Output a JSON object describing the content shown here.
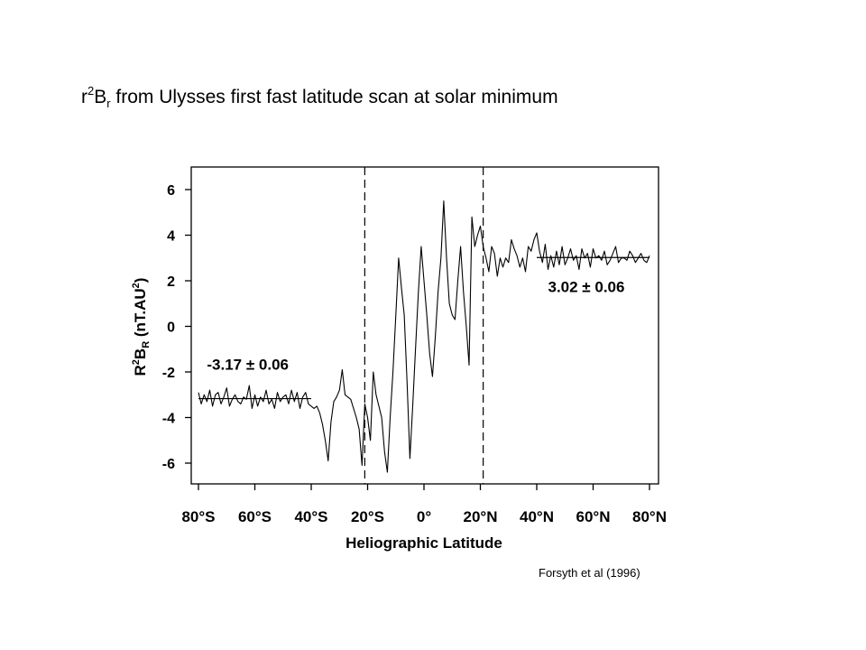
{
  "slide": {
    "title_main": "r",
    "title_sup": "2",
    "title_b": "B",
    "title_sub": "r",
    "title_rest": " from Ulysses first fast latitude scan at solar minimum",
    "citation": "Forsyth et al (1996)"
  },
  "chart_data": {
    "type": "line",
    "xlabel": "Heliographic Latitude",
    "ylabel_parts": [
      "R",
      "2",
      "B",
      "R",
      " (nT.AU",
      "2",
      ")"
    ],
    "xlim": [
      -82,
      82
    ],
    "ylim": [
      -7,
      7
    ],
    "x_ticks": [
      -80,
      -60,
      -40,
      -20,
      0,
      20,
      40,
      60,
      80
    ],
    "x_tick_labels": [
      "80°S",
      "60°S",
      "40°S",
      "20°S",
      "0°",
      "20°N",
      "40°N",
      "60°N",
      "80°N"
    ],
    "y_ticks": [
      6,
      4,
      2,
      0,
      -2,
      -4,
      -6
    ],
    "y_tick_labels": [
      "6",
      "4",
      "2",
      "0",
      "-2",
      "-4",
      "-6"
    ],
    "grid": false,
    "dashed_vlines": [
      -21,
      21
    ],
    "fits": [
      {
        "x": [
          -80,
          -40
        ],
        "y": -3.17,
        "label": "-3.17 ± 0.06",
        "label_x": -77,
        "label_y": -1.9
      },
      {
        "x": [
          40,
          80
        ],
        "y": 3.02,
        "label": "3.02 ± 0.06",
        "label_x": 44,
        "label_y": 1.5
      }
    ],
    "series": [
      {
        "x": [
          -80,
          -79,
          -78,
          -77,
          -76,
          -75,
          -74,
          -73,
          -72,
          -71,
          -70,
          -69,
          -68,
          -67,
          -66,
          -65,
          -64,
          -63,
          -62,
          -61,
          -60,
          -59,
          -58,
          -57,
          -56,
          -55,
          -54,
          -53,
          -52,
          -51,
          -50,
          -49,
          -48,
          -47,
          -46,
          -45,
          -44,
          -43,
          -42,
          -41,
          -40,
          -39,
          -38,
          -37,
          -36,
          -35,
          -34,
          -33,
          -32,
          -31,
          -30,
          -29,
          -28,
          -27,
          -26,
          -25,
          -24,
          -23,
          -22,
          -21,
          -20,
          -19,
          -18,
          -17,
          -16,
          -15,
          -14,
          -13,
          -12,
          -11,
          -10,
          -9,
          -8,
          -7,
          -6,
          -5,
          -4,
          -3,
          -2,
          -1,
          0,
          1,
          2,
          3,
          4,
          5,
          6,
          7,
          8,
          9,
          10,
          11,
          12,
          13,
          14,
          15,
          16,
          17,
          18,
          19,
          20,
          21,
          22,
          23,
          24,
          25,
          26,
          27,
          28,
          29,
          30,
          31,
          32,
          33,
          34,
          35,
          36,
          37,
          38,
          39,
          40,
          41,
          42,
          43,
          44,
          45,
          46,
          47,
          48,
          49,
          50,
          51,
          52,
          53,
          54,
          55,
          56,
          57,
          58,
          59,
          60,
          61,
          62,
          63,
          64,
          65,
          66,
          67,
          68,
          69,
          70,
          71,
          72,
          73,
          74,
          75,
          76,
          77,
          78,
          79,
          80
        ],
        "y": [
          -2.9,
          -3.4,
          -3.0,
          -3.3,
          -2.8,
          -3.5,
          -3.0,
          -2.9,
          -3.4,
          -3.1,
          -2.7,
          -3.5,
          -3.2,
          -3.0,
          -3.3,
          -3.4,
          -3.1,
          -3.2,
          -2.6,
          -3.6,
          -3.0,
          -3.5,
          -3.1,
          -3.3,
          -2.8,
          -3.4,
          -3.2,
          -3.6,
          -2.9,
          -3.3,
          -3.1,
          -3.0,
          -3.4,
          -2.8,
          -3.3,
          -2.9,
          -3.6,
          -3.1,
          -2.9,
          -3.4,
          -3.5,
          -3.6,
          -3.5,
          -3.8,
          -4.3,
          -5.0,
          -5.9,
          -4.2,
          -3.3,
          -3.1,
          -2.8,
          -1.9,
          -3.0,
          -3.1,
          -3.2,
          -3.6,
          -4.0,
          -4.5,
          -6.1,
          -3.4,
          -4.0,
          -5.0,
          -2.0,
          -3.0,
          -3.5,
          -4.0,
          -5.5,
          -6.4,
          -4.0,
          -2.0,
          0.5,
          3.0,
          1.7,
          0.5,
          -2.5,
          -5.8,
          -3.5,
          -1.0,
          1.5,
          3.5,
          2.0,
          0.5,
          -1.2,
          -2.2,
          -0.5,
          1.5,
          3.0,
          5.5,
          3.0,
          1.0,
          0.5,
          0.3,
          2.0,
          3.5,
          1.5,
          0.0,
          -1.7,
          4.8,
          3.5,
          4.0,
          4.4,
          3.5,
          3.0,
          2.4,
          3.5,
          3.2,
          2.2,
          3.0,
          2.6,
          3.0,
          2.8,
          3.8,
          3.4,
          3.1,
          2.6,
          3.0,
          2.4,
          3.5,
          3.3,
          3.8,
          4.1,
          3.3,
          2.8,
          3.6,
          2.5,
          3.1,
          2.6,
          3.3,
          2.7,
          3.5,
          2.7,
          3.0,
          3.4,
          2.9,
          3.1,
          2.5,
          3.4,
          3.0,
          3.2,
          2.6,
          3.4,
          3.0,
          3.1,
          2.9,
          3.3,
          2.7,
          2.9,
          3.2,
          3.5,
          2.8,
          3.0,
          3.0,
          2.9,
          3.3,
          3.1,
          2.8,
          3.0,
          3.2,
          2.9,
          2.8,
          3.1
        ]
      }
    ]
  }
}
